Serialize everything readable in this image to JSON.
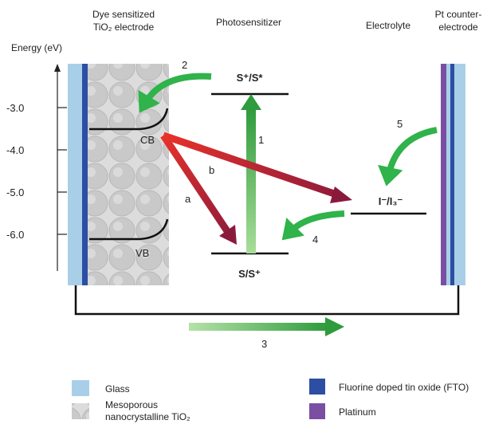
{
  "header": {
    "dye_electrode": [
      "Dye sensitized",
      "TiO₂ electrode"
    ],
    "photosensitizer": "Photosensitizer",
    "electrolyte": "Electrolyte",
    "counter_electrode": [
      "Pt counter-",
      "electrode"
    ]
  },
  "axis": {
    "label": "Energy (eV)",
    "ticks": [
      "-3.0",
      "-4.0",
      "-5.0",
      "-6.0"
    ]
  },
  "levels": {
    "cb": "CB",
    "vb": "VB",
    "excited": "S⁺/S*",
    "ground": "S/S⁺",
    "redox": "I⁻/I₃⁻"
  },
  "steps": [
    "1",
    "2",
    "3",
    "4",
    "5",
    "a",
    "b"
  ],
  "legend": {
    "glass": "Glass",
    "tio2": [
      "Mesoporous",
      "nanocrystalline TiO₂"
    ],
    "fto": "Fluorine doped tin oxide (FTO)",
    "platinum": "Platinum"
  }
}
